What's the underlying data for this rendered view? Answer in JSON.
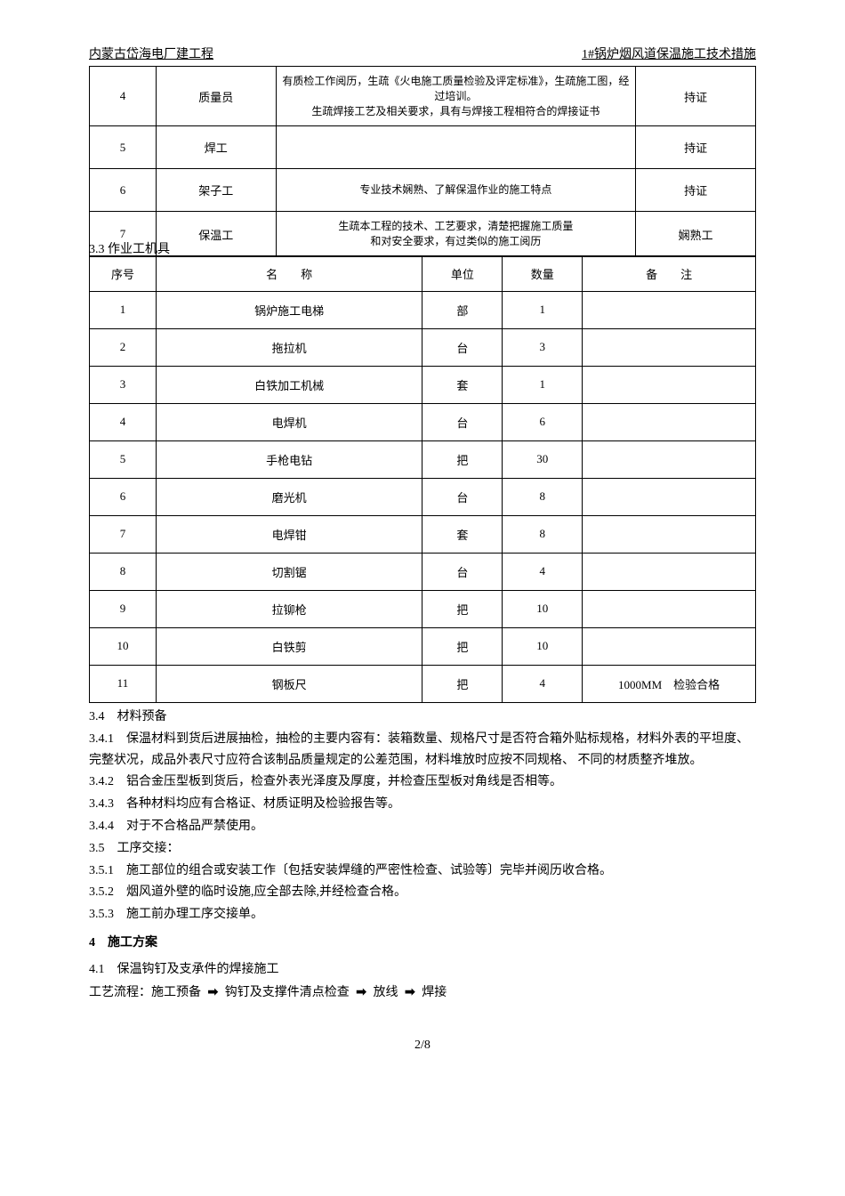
{
  "header": {
    "left": "内蒙古岱海电厂建工程",
    "right": "1#锅炉烟风道保温施工技术措施"
  },
  "table1": {
    "rows": [
      {
        "no": "4",
        "role": "质量员",
        "desc": "有质检工作阅历，生疏《火电施工质量检验及评定标准》，生疏施工图，经过培训。\n生疏焊接工艺及相关要求，具有与焊接工程相符合的焊接证书",
        "status": "持证"
      },
      {
        "no": "5",
        "role": "焊工",
        "desc": "",
        "status": "持证"
      },
      {
        "no": "6",
        "role": "架子工",
        "desc": "专业技术娴熟、了解保温作业的施工特点",
        "status": "持证"
      },
      {
        "no": "7",
        "role": "保温工",
        "desc": "生疏本工程的技术、工艺要求，清楚把握施工质量\n和对安全要求，有过类似的施工阅历",
        "status": "娴熟工"
      }
    ]
  },
  "section33": "3.3 作业工机具",
  "table2": {
    "headers": {
      "no": "序号",
      "name": "名　　称",
      "unit": "单位",
      "qty": "数量",
      "remark": "备　　注"
    },
    "rows": [
      {
        "no": "1",
        "name": "锅炉施工电梯",
        "unit": "部",
        "qty": "1",
        "remark": ""
      },
      {
        "no": "2",
        "name": "拖拉机",
        "unit": "台",
        "qty": "3",
        "remark": ""
      },
      {
        "no": "3",
        "name": "白铁加工机械",
        "unit": "套",
        "qty": "1",
        "remark": ""
      },
      {
        "no": "4",
        "name": "电焊机",
        "unit": "台",
        "qty": "6",
        "remark": ""
      },
      {
        "no": "5",
        "name": "手枪电钻",
        "unit": "把",
        "qty": "30",
        "remark": ""
      },
      {
        "no": "6",
        "name": "磨光机",
        "unit": "台",
        "qty": "8",
        "remark": ""
      },
      {
        "no": "7",
        "name": "电焊钳",
        "unit": "套",
        "qty": "8",
        "remark": ""
      },
      {
        "no": "8",
        "name": "切割锯",
        "unit": "台",
        "qty": "4",
        "remark": ""
      },
      {
        "no": "9",
        "name": "拉铆枪",
        "unit": "把",
        "qty": "10",
        "remark": ""
      },
      {
        "no": "10",
        "name": "白铁剪",
        "unit": "把",
        "qty": "10",
        "remark": ""
      },
      {
        "no": "11",
        "name": "钢板尺",
        "unit": "把",
        "qty": "4",
        "remark": "1000MM　检验合格"
      }
    ]
  },
  "body": {
    "p34": "3.4　材料预备",
    "p341": "3.4.1　保温材料到货后进展抽检，抽检的主要内容有：装箱数量、规格尺寸是否符合箱外贴标规格，材料外表的平坦度、完整状况，成品外表尺寸应符合该制品质量规定的公差范围，材料堆放时应按不同规格、 不同的材质整齐堆放。",
    "p342": "3.4.2　铝合金压型板到货后，检查外表光泽度及厚度，并检查压型板对角线是否相等。",
    "p343": "3.4.3　各种材料均应有合格证、材质证明及检验报告等。",
    "p344": "3.4.4　对于不合格品严禁使用。",
    "p35": "3.5　工序交接：",
    "p351": "3.5.1　施工部位的组合或安装工作〔包括安装焊缝的严密性检查、试验等〕完毕并阅历收合格。",
    "p352": "3.5.2　烟风道外壁的临时设施,应全部去除,并经检查合格。",
    "p353": "3.5.3　施工前办理工序交接单。",
    "h4": "4　施工方案",
    "p41": "4.1　保温钩钉及支承件的焊接施工",
    "flow_prefix": "工艺流程：施工预备",
    "flow_s2": "钩钉及支撑件清点检查",
    "flow_s3": "放线",
    "flow_s4": "焊接",
    "arrow": "➡"
  },
  "pageNum": "2/8"
}
